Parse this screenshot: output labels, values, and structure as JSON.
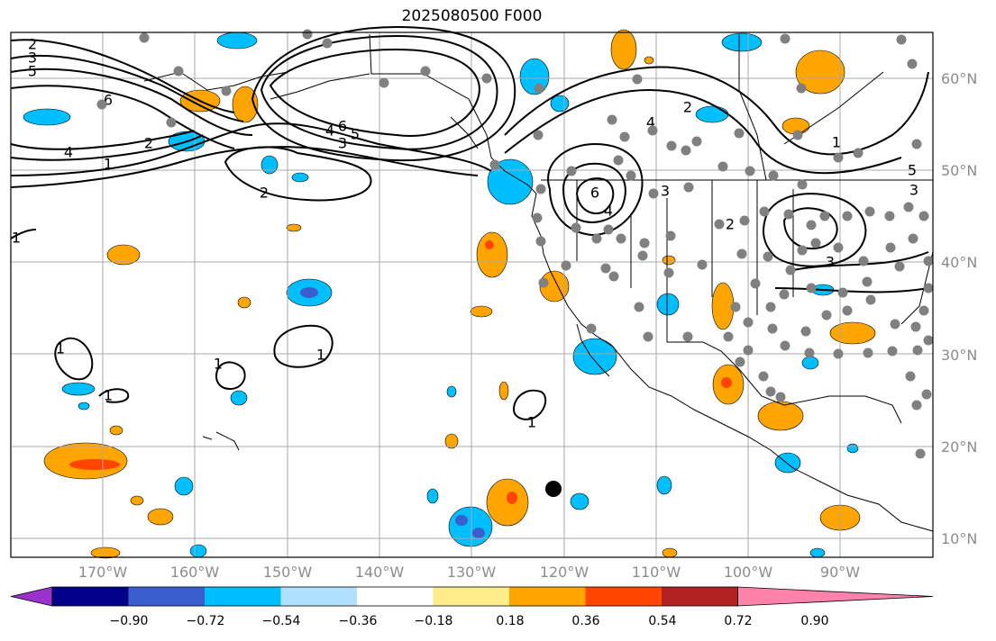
{
  "title": "2025080500 F000",
  "lat_labels": [
    "60°N",
    "50°N",
    "40°N",
    "30°N",
    "20°N",
    "10°N"
  ],
  "lon_labels": [
    "170°W",
    "160°W",
    "150°W",
    "140°W",
    "130°W",
    "120°W",
    "110°W",
    "100°W",
    "90°W"
  ],
  "colorbar": {
    "ticks": [
      "−0.90",
      "−0.72",
      "−0.54",
      "−0.36",
      "−0.18",
      "0.18",
      "0.36",
      "0.54",
      "0.72",
      "0.90"
    ],
    "colors": [
      "#9a32cd",
      "#00008b",
      "#3a5fcd",
      "#00bfff",
      "#b0e2ff",
      "#ffffff",
      "#ffec8b",
      "#ffa500",
      "#ff4500",
      "#b22222",
      "#ff82ab"
    ]
  },
  "contour_labels": [
    "2",
    "3",
    "5",
    "6",
    "2",
    "4",
    "1",
    "2",
    "6",
    "5",
    "4",
    "3",
    "4",
    "2",
    "1",
    "6",
    "4",
    "3",
    "2",
    "3",
    "1",
    "1",
    "1",
    "1",
    "1",
    "1",
    "5",
    "3"
  ],
  "colors": {
    "contour": "#000000",
    "station": "#808080",
    "grid": "#a9a9a9"
  }
}
